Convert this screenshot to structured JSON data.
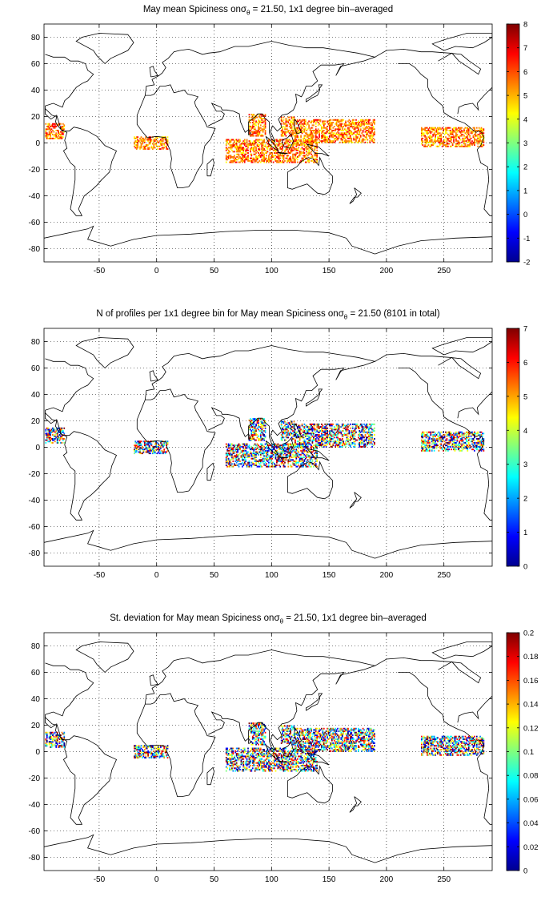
{
  "figure": {
    "x_ticks": [
      "-50",
      "0",
      "50",
      "100",
      "150",
      "200",
      "250"
    ],
    "y_ticks": [
      "80",
      "60",
      "40",
      "20",
      "0",
      "-20",
      "-40",
      "-60",
      "-80"
    ],
    "x_tick_values": [
      -50,
      0,
      50,
      100,
      150,
      200,
      250
    ],
    "y_tick_values": [
      80,
      60,
      40,
      20,
      0,
      -20,
      -40,
      -60,
      -80
    ],
    "x_range": [
      -98,
      292
    ],
    "y_range": [
      -90,
      90
    ]
  },
  "panels": [
    {
      "title_parts": [
        "May ",
        "mean Spiciness on",
        "σ",
        "θ",
        " = 21.50, 1x1 degree bin–averaged"
      ],
      "colorbar_ticks": [
        "8",
        "7",
        "6",
        "5",
        "4",
        "3",
        "2",
        "1",
        "0",
        "-1",
        "-2"
      ],
      "colorbar_range": [
        -2,
        8
      ]
    },
    {
      "title_parts": [
        "N of profiles per 1x1 degree bin for May ",
        "mean Spiciness on",
        "σ",
        "θ",
        " = 21.50 (8101 in total)"
      ],
      "colorbar_ticks": [
        "7",
        "6",
        "5",
        "4",
        "3",
        "2",
        "1",
        "0"
      ],
      "colorbar_range": [
        0,
        7
      ]
    },
    {
      "title_parts": [
        "St. deviation for May ",
        "mean Spiciness on",
        "σ",
        "θ",
        " = 21.50, 1x1 degree bin–averaged"
      ],
      "colorbar_ticks": [
        "0.2",
        "0.18",
        "0.16",
        "0.14",
        "0.12",
        "0.1",
        "0.08",
        "0.06",
        "0.04",
        "0.02",
        "0"
      ],
      "colorbar_range": [
        0,
        0.2
      ]
    }
  ],
  "colors": {
    "jet": [
      "#00008f",
      "#0000ff",
      "#007fff",
      "#00ffff",
      "#7fff7f",
      "#ffff00",
      "#ff7f00",
      "#ff0000",
      "#7f0000"
    ],
    "coast": "#000000",
    "grid": "#000000"
  },
  "data_regions": [
    {
      "name": "east-pacific",
      "lon": [
        230,
        285
      ],
      "lat": [
        -3,
        12
      ]
    },
    {
      "name": "caribbean",
      "lon": [
        -97,
        -80
      ],
      "lat": [
        3,
        15
      ]
    },
    {
      "name": "gulf-of-guinea",
      "lon": [
        -20,
        10
      ],
      "lat": [
        -5,
        5
      ]
    },
    {
      "name": "bay-of-bengal",
      "lon": [
        80,
        95
      ],
      "lat": [
        5,
        22
      ]
    },
    {
      "name": "south-china-sea",
      "lon": [
        108,
        120
      ],
      "lat": [
        5,
        20
      ]
    },
    {
      "name": "west-pacific",
      "lon": [
        120,
        190
      ],
      "lat": [
        0,
        18
      ]
    },
    {
      "name": "indian-ocean",
      "lon": [
        60,
        140
      ],
      "lat": [
        -15,
        3
      ]
    }
  ]
}
